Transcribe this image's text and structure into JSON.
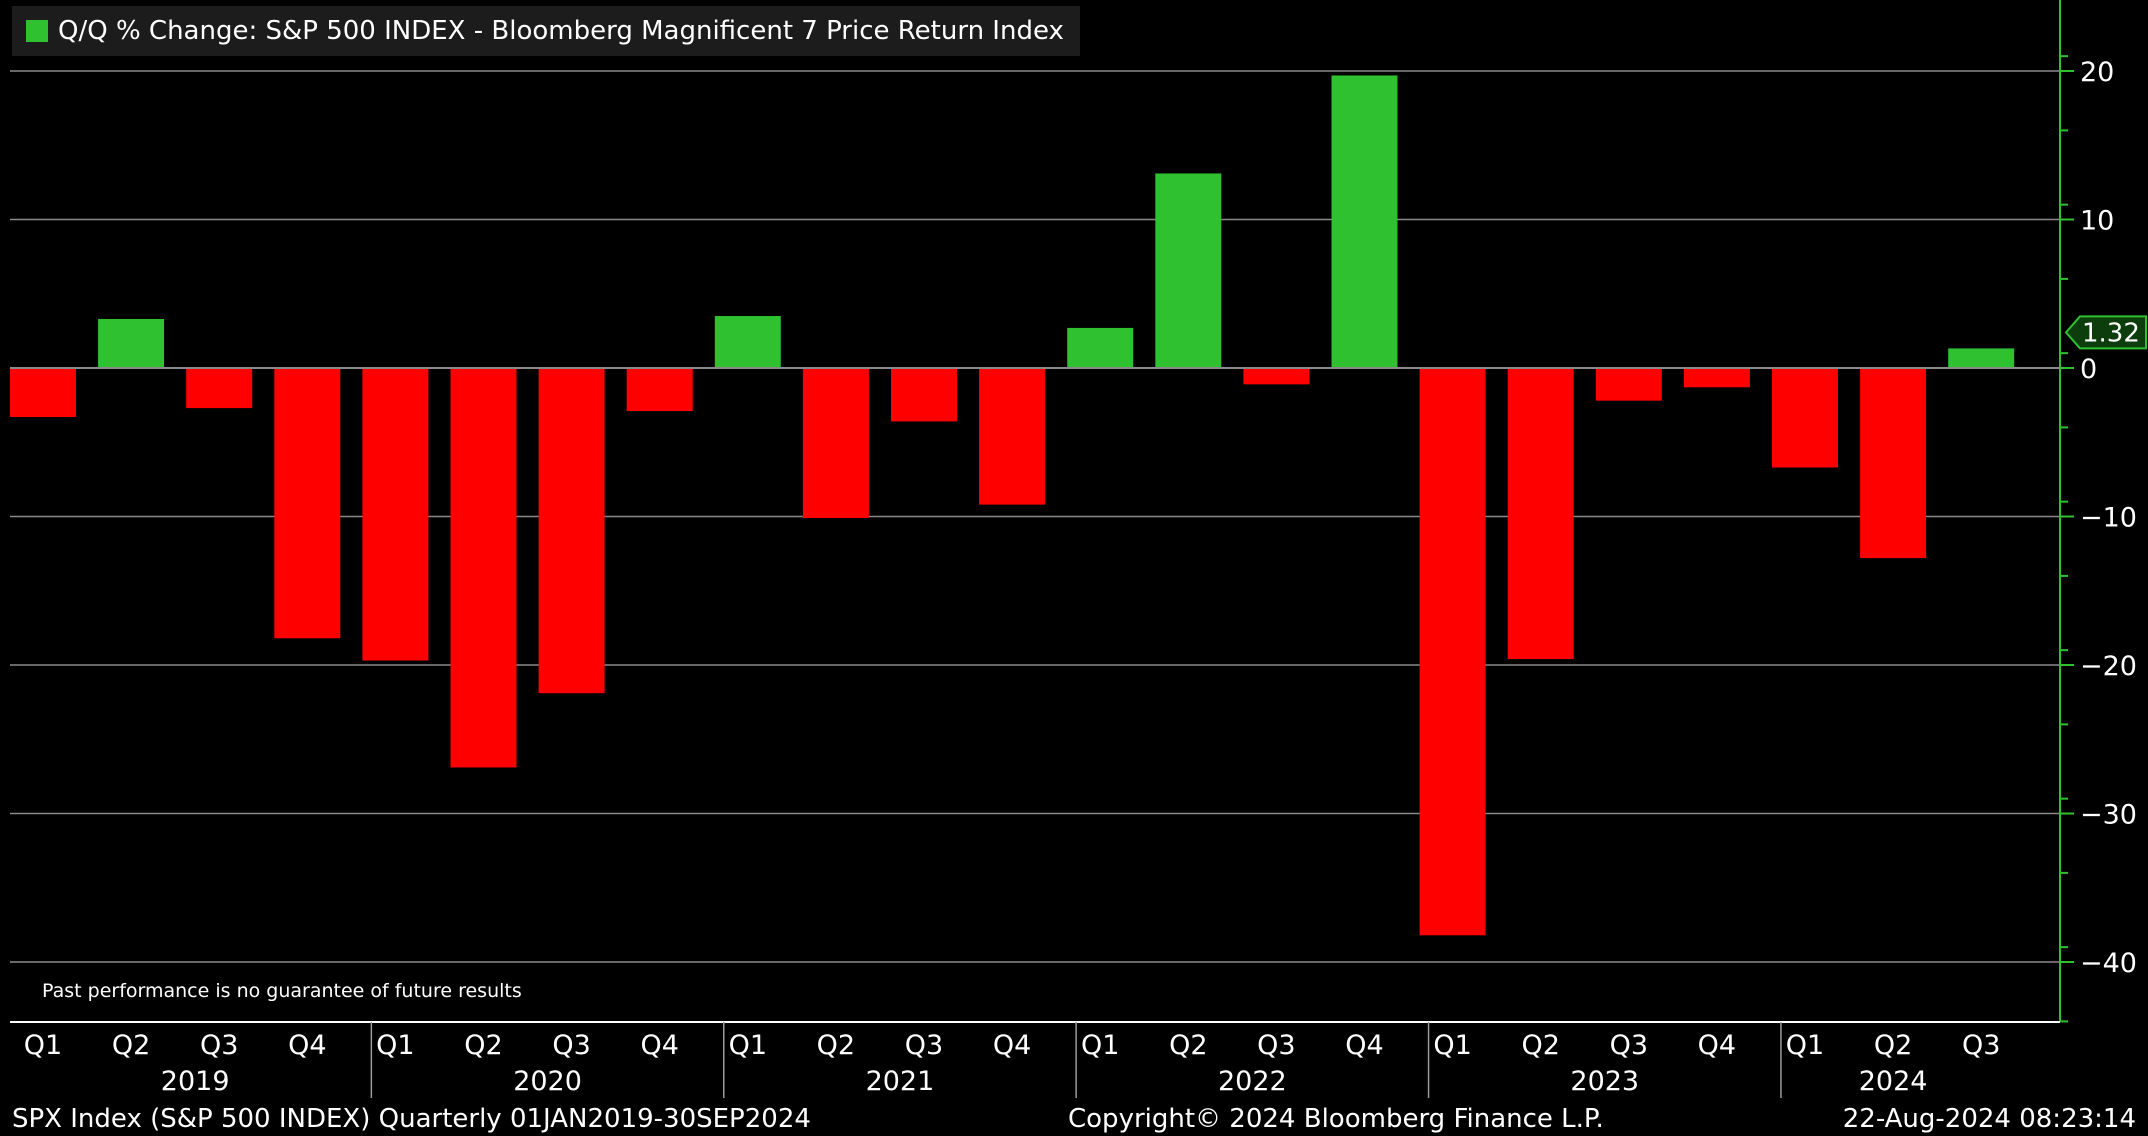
{
  "legend": {
    "label": "Q/Q % Change: S&P 500 INDEX - Bloomberg Magnificent 7 Price Return Index",
    "color": "#2fc12f"
  },
  "footnote": "Past performance is no guarantee of future results",
  "footer": {
    "left": "SPX Index (S&P 500 INDEX)  Quarterly 01JAN2019-30SEP2024",
    "center": "Copyright© 2024 Bloomberg Finance L.P.",
    "right": "22-Aug-2024 08:23:14"
  },
  "colors": {
    "positive": "#2fc12f",
    "negative": "#ff0000",
    "background": "#000000",
    "axis": "#2fc12f",
    "grid": "#8a8a8a"
  },
  "chart_data": {
    "type": "bar",
    "title": "Q/Q % Change: S&P 500 INDEX - Bloomberg Magnificent 7 Price Return Index",
    "xlabel": "",
    "ylabel": "",
    "ylim": [
      -44,
      25
    ],
    "yticks": [
      20,
      10,
      0,
      -10,
      -20,
      -30,
      -40
    ],
    "ytick_labels": [
      "20",
      "10",
      "0",
      "-10",
      "-20",
      "-30",
      "-40"
    ],
    "y_axis_position": "right",
    "grid": true,
    "categories": [
      "Q1",
      "Q2",
      "Q3",
      "Q4",
      "Q1",
      "Q2",
      "Q3",
      "Q4",
      "Q1",
      "Q2",
      "Q3",
      "Q4",
      "Q1",
      "Q2",
      "Q3",
      "Q4",
      "Q1",
      "Q2",
      "Q3",
      "Q4",
      "Q1",
      "Q2",
      "Q3"
    ],
    "years": [
      {
        "label": "2019",
        "start": 0,
        "count": 4
      },
      {
        "label": "2020",
        "start": 4,
        "count": 4
      },
      {
        "label": "2021",
        "start": 8,
        "count": 4
      },
      {
        "label": "2022",
        "start": 12,
        "count": 4
      },
      {
        "label": "2023",
        "start": 16,
        "count": 4
      },
      {
        "label": "2024",
        "start": 20,
        "count": 3
      }
    ],
    "values": [
      -3.3,
      3.3,
      -2.7,
      -18.2,
      -19.7,
      -26.9,
      -21.9,
      -2.9,
      3.5,
      -10.1,
      -3.6,
      -9.2,
      2.7,
      13.1,
      -1.1,
      19.7,
      -38.2,
      -19.6,
      -2.2,
      -1.3,
      -6.7,
      -12.8,
      1.32
    ],
    "last_value_label": "1.32"
  }
}
